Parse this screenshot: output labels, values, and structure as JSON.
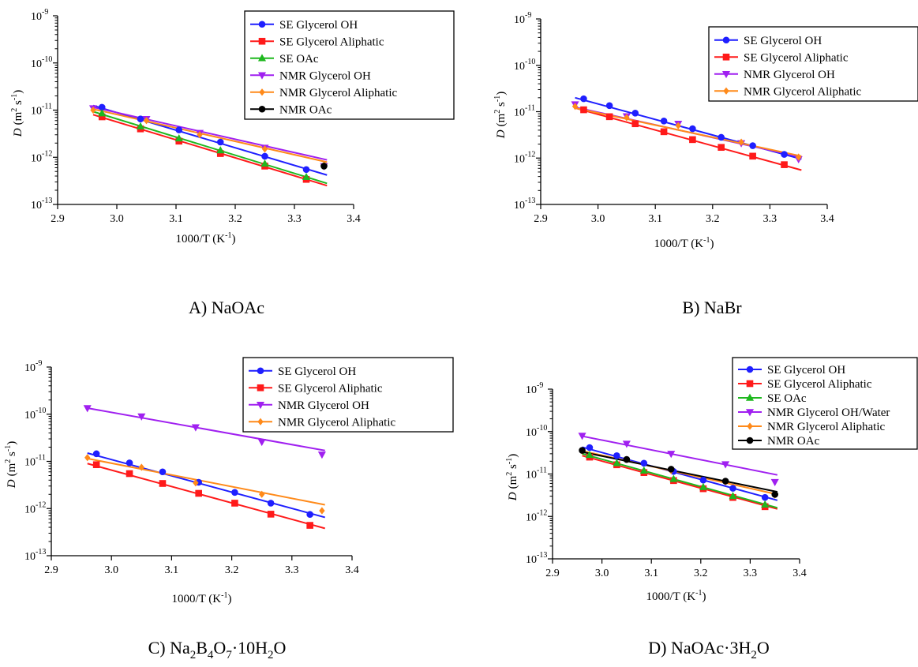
{
  "colors": {
    "SE Glycerol OH": "#1f1fff",
    "SE Glycerol Aliphatic": "#ff1a1a",
    "SE OAc": "#1fb81f",
    "NMR Glycerol OH": "#a020f0",
    "NMR Glycerol OH/Water": "#a020f0",
    "NMR Glycerol Aliphatic": "#ff8a1a",
    "NMR OAc": "#000000"
  },
  "markers": {
    "SE Glycerol OH": "circle",
    "SE Glycerol Aliphatic": "square",
    "SE OAc": "triangle-up",
    "NMR Glycerol OH": "triangle-down",
    "NMR Glycerol OH/Water": "triangle-down",
    "NMR Glycerol Aliphatic": "diamond",
    "NMR OAc": "circle"
  },
  "chart_data": [
    {
      "type": "scatter",
      "caption": "A) NaOAc",
      "xlabel": "1000/T (K",
      "xlabel_sup": "-1",
      "xlabel_end": ")",
      "ylabel": "D",
      "ylabel_units": "(m",
      "ylabel_sup1": "2",
      "ylabel_mid": " s",
      "ylabel_sup2": "-1",
      "ylabel_end": ")",
      "xlim": [
        2.9,
        3.4
      ],
      "ylim_log10": [
        -13,
        -9
      ],
      "yscale": "log",
      "x_ticks": [
        "2.9",
        "3.0",
        "3.1",
        "3.2",
        "3.3",
        "3.4"
      ],
      "y_ticks": [
        {
          "base": "10",
          "exp": "-13"
        },
        {
          "base": "10",
          "exp": "-12"
        },
        {
          "base": "10",
          "exp": "-11"
        },
        {
          "base": "10",
          "exp": "-10"
        },
        {
          "base": "10",
          "exp": "-9"
        }
      ],
      "legend": [
        "SE Glycerol OH",
        "SE Glycerol Aliphatic",
        "SE OAc",
        "NMR Glycerol OH",
        "NMR Glycerol Aliphatic",
        "NMR OAc"
      ],
      "series": [
        {
          "name": "SE Glycerol OH",
          "x": [
            2.975,
            3.04,
            3.105,
            3.175,
            3.25,
            3.32
          ],
          "y": [
            1.15e-11,
            6.5e-12,
            3.8e-12,
            2.1e-12,
            1.05e-12,
            5.5e-13
          ],
          "fit": [
            1.25e-11,
            4.2e-13
          ]
        },
        {
          "name": "SE Glycerol Aliphatic",
          "x": [
            2.975,
            3.04,
            3.105,
            3.175,
            3.25,
            3.32
          ],
          "y": [
            7.2e-12,
            4e-12,
            2.2e-12,
            1.2e-12,
            6.5e-13,
            3.4e-13
          ],
          "fit": [
            8e-12,
            2.5e-13
          ]
        },
        {
          "name": "SE OAc",
          "x": [
            2.975,
            3.04,
            3.105,
            3.175,
            3.25,
            3.32
          ],
          "y": [
            8.5e-12,
            4.5e-12,
            2.5e-12,
            1.4e-12,
            7.3e-13,
            3.8e-13
          ],
          "fit": [
            9.3e-12,
            2.8e-13
          ]
        },
        {
          "name": "NMR Glycerol OH",
          "x": [
            2.96,
            3.05,
            3.14,
            3.25,
            3.35
          ],
          "y": [
            1.1e-11,
            6.5e-12,
            3.3e-12,
            1.6e-12,
            6.5e-13
          ],
          "fit": [
            1.15e-11,
            8.8e-13
          ]
        },
        {
          "name": "NMR Glycerol Aliphatic",
          "x": [
            2.96,
            3.05,
            3.14,
            3.25,
            3.35
          ],
          "y": [
            1e-11,
            6e-12,
            3e-12,
            1.5e-12,
            6.8e-13
          ],
          "fit": [
            1.05e-11,
            7.9e-13
          ]
        },
        {
          "name": "NMR OAc",
          "x": [
            3.35
          ],
          "y": [
            6.5e-13
          ],
          "fit": null
        }
      ]
    },
    {
      "type": "scatter",
      "caption": "B) NaBr",
      "xlabel": "1000/T (K",
      "xlabel_sup": "-1",
      "xlabel_end": ")",
      "ylabel": "D",
      "ylabel_units": "(m",
      "ylabel_sup1": "2",
      "ylabel_mid": " s",
      "ylabel_sup2": "-1",
      "ylabel_end": ")",
      "xlim": [
        2.9,
        3.4
      ],
      "ylim_log10": [
        -13,
        -9
      ],
      "yscale": "log",
      "x_ticks": [
        "2.9",
        "3.0",
        "3.1",
        "3.2",
        "3.3",
        "3.4"
      ],
      "y_ticks": [
        {
          "base": "10",
          "exp": "-13"
        },
        {
          "base": "10",
          "exp": "-12"
        },
        {
          "base": "10",
          "exp": "-11"
        },
        {
          "base": "10",
          "exp": "-10"
        },
        {
          "base": "10",
          "exp": "-9"
        }
      ],
      "legend": [
        "SE Glycerol OH",
        "SE Glycerol Aliphatic",
        "NMR Glycerol OH",
        "NMR Glycerol Aliphatic"
      ],
      "series": [
        {
          "name": "SE Glycerol OH",
          "x": [
            2.975,
            3.02,
            3.065,
            3.115,
            3.165,
            3.215,
            3.27,
            3.325
          ],
          "y": [
            1.9e-11,
            1.35e-11,
            9.3e-12,
            6.3e-12,
            4.3e-12,
            2.8e-12,
            1.85e-12,
            1.2e-12
          ],
          "fit": [
            2e-11,
            9.5e-13
          ]
        },
        {
          "name": "SE Glycerol Aliphatic",
          "x": [
            2.975,
            3.02,
            3.065,
            3.115,
            3.165,
            3.215,
            3.27,
            3.325
          ],
          "y": [
            1.1e-11,
            7.8e-12,
            5.5e-12,
            3.7e-12,
            2.5e-12,
            1.7e-12,
            1.1e-12,
            7.2e-13
          ],
          "fit": [
            1.2e-11,
            5.5e-13
          ]
        },
        {
          "name": "NMR Glycerol OH",
          "x": [
            2.96,
            3.05,
            3.14,
            3.25,
            3.35
          ],
          "y": [
            1.45e-11,
            8e-12,
            5.5e-12,
            2.1e-12,
            9.5e-13
          ],
          "fit": [
            1.25e-11,
            1.05e-12
          ]
        },
        {
          "name": "NMR Glycerol Aliphatic",
          "x": [
            2.96,
            3.05,
            3.14,
            3.25,
            3.35
          ],
          "y": [
            1.3e-11,
            7.5e-12,
            5e-12,
            2.2e-12,
            1.05e-12
          ],
          "fit": [
            1.2e-11,
            1.1e-12
          ]
        }
      ]
    },
    {
      "type": "scatter",
      "caption": "C) Na",
      "caption_parts": [
        {
          "t": "C) Na",
          "sub": false
        },
        {
          "t": "2",
          "sub": true
        },
        {
          "t": "B",
          "sub": false
        },
        {
          "t": "4",
          "sub": true
        },
        {
          "t": "O",
          "sub": false
        },
        {
          "t": "7",
          "sub": true
        },
        {
          "t": "·10H",
          "sub": false
        },
        {
          "t": "2",
          "sub": true
        },
        {
          "t": "O",
          "sub": false
        }
      ],
      "xlabel": "1000/T (K",
      "xlabel_sup": "-1",
      "xlabel_end": ")",
      "ylabel": "D",
      "ylabel_units": "(m",
      "ylabel_sup1": "2",
      "ylabel_mid": " s",
      "ylabel_sup2": "-1",
      "ylabel_end": ")",
      "xlim": [
        2.9,
        3.4
      ],
      "ylim_log10": [
        -13,
        -9
      ],
      "yscale": "log",
      "x_ticks": [
        "2.9",
        "3.0",
        "3.1",
        "3.2",
        "3.3",
        "3.4"
      ],
      "y_ticks": [
        {
          "base": "10",
          "exp": "-13"
        },
        {
          "base": "10",
          "exp": "-12"
        },
        {
          "base": "10",
          "exp": "-11"
        },
        {
          "base": "10",
          "exp": "-10"
        },
        {
          "base": "10",
          "exp": "-9"
        }
      ],
      "legend": [
        "SE Glycerol OH",
        "SE Glycerol Aliphatic",
        "NMR Glycerol OH",
        "NMR Glycerol Aliphatic"
      ],
      "series": [
        {
          "name": "SE Glycerol OH",
          "x": [
            2.975,
            3.03,
            3.085,
            3.145,
            3.205,
            3.265,
            3.33
          ],
          "y": [
            1.45e-11,
            9.3e-12,
            6e-12,
            3.6e-12,
            2.2e-12,
            1.3e-12,
            7.5e-13
          ],
          "fit": [
            1.5e-11,
            6.5e-13
          ]
        },
        {
          "name": "SE Glycerol Aliphatic",
          "x": [
            2.975,
            3.03,
            3.085,
            3.145,
            3.205,
            3.265,
            3.33
          ],
          "y": [
            8.5e-12,
            5.5e-12,
            3.4e-12,
            2.1e-12,
            1.3e-12,
            7.6e-13,
            4.4e-13
          ],
          "fit": [
            9e-12,
            3.8e-13
          ]
        },
        {
          "name": "NMR Glycerol OH",
          "x": [
            2.96,
            3.05,
            3.14,
            3.25,
            3.35
          ],
          "y": [
            1.35e-10,
            9e-11,
            5.3e-11,
            2.6e-11,
            1.4e-11
          ],
          "fit": [
            1.35e-10,
            1.7e-11
          ]
        },
        {
          "name": "NMR Glycerol Aliphatic",
          "x": [
            2.96,
            3.05,
            3.14,
            3.25,
            3.35
          ],
          "y": [
            1.2e-11,
            7.5e-12,
            3.5e-12,
            2e-12,
            9e-13
          ],
          "fit": [
            1.15e-11,
            1.2e-12
          ]
        }
      ]
    },
    {
      "type": "scatter",
      "caption": "D) NaOAc·3H",
      "caption_parts": [
        {
          "t": "D) NaOAc·3H",
          "sub": false
        },
        {
          "t": "2",
          "sub": true
        },
        {
          "t": "O",
          "sub": false
        }
      ],
      "xlabel": "1000/T (K",
      "xlabel_sup": "-1",
      "xlabel_end": ")",
      "ylabel": "D",
      "ylabel_units": "(m",
      "ylabel_sup1": "2",
      "ylabel_mid": " s",
      "ylabel_sup2": "-1",
      "ylabel_end": ")",
      "xlim": [
        2.9,
        3.4
      ],
      "ylim_log10": [
        -13,
        -9
      ],
      "yscale": "log",
      "x_ticks": [
        "2.9",
        "3.0",
        "3.1",
        "3.2",
        "3.3",
        "3.4"
      ],
      "y_ticks": [
        {
          "base": "10",
          "exp": "-13"
        },
        {
          "base": "10",
          "exp": "-12"
        },
        {
          "base": "10",
          "exp": "-11"
        },
        {
          "base": "10",
          "exp": "-10"
        },
        {
          "base": "10",
          "exp": "-9"
        }
      ],
      "legend": [
        "SE Glycerol OH",
        "SE Glycerol Aliphatic",
        "SE OAc",
        "NMR Glycerol OH/Water",
        "NMR Glycerol Aliphatic",
        "NMR OAc"
      ],
      "series": [
        {
          "name": "SE Glycerol OH",
          "x": [
            2.975,
            3.03,
            3.085,
            3.145,
            3.205,
            3.265,
            3.33
          ],
          "y": [
            4.2e-11,
            2.7e-11,
            1.8e-11,
            1.15e-11,
            7.2e-12,
            4.6e-12,
            2.8e-12
          ],
          "fit": [
            4.3e-11,
            2.4e-12
          ]
        },
        {
          "name": "SE Glycerol Aliphatic",
          "x": [
            2.975,
            3.03,
            3.085,
            3.145,
            3.205,
            3.265,
            3.33
          ],
          "y": [
            2.5e-11,
            1.65e-11,
            1.08e-11,
            7e-12,
            4.5e-12,
            2.8e-12,
            1.7e-12
          ],
          "fit": [
            2.7e-11,
            1.5e-12
          ]
        },
        {
          "name": "SE OAc",
          "x": [
            2.975,
            3.03,
            3.085,
            3.145,
            3.205,
            3.265,
            3.33
          ],
          "y": [
            2.8e-11,
            1.8e-11,
            1.2e-11,
            7.6e-12,
            4.9e-12,
            3e-12,
            1.9e-12
          ],
          "fit": [
            3e-11,
            1.6e-12
          ]
        },
        {
          "name": "NMR Glycerol OH/Water",
          "x": [
            2.96,
            3.05,
            3.14,
            3.25,
            3.35
          ],
          "y": [
            8e-11,
            5.2e-11,
            3e-11,
            1.7e-11,
            6.5e-12
          ],
          "fit": [
            7.8e-11,
            9.5e-12
          ]
        },
        {
          "name": "NMR Glycerol Aliphatic",
          "x": [
            2.96,
            3.05,
            3.14,
            3.25,
            3.35
          ],
          "y": [
            3.5e-11,
            2.2e-11,
            1.2e-11,
            6.5e-12,
            3.2e-12
          ],
          "fit": [
            3.5e-11,
            3.3e-12
          ]
        },
        {
          "name": "NMR OAc",
          "x": [
            2.96,
            3.05,
            3.14,
            3.25,
            3.35
          ],
          "y": [
            3.6e-11,
            2.2e-11,
            1.3e-11,
            6.8e-12,
            3.3e-12
          ],
          "fit": [
            3.3e-11,
            3.8e-12
          ]
        }
      ]
    }
  ]
}
